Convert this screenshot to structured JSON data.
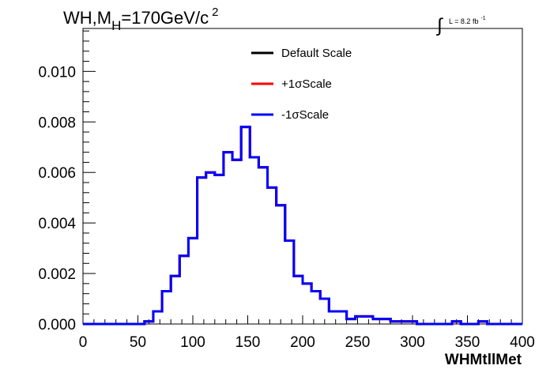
{
  "title": {
    "prefix": "WH,M",
    "subscript": "H",
    "main": "=170GeV/c",
    "superscript": "2"
  },
  "lumi": {
    "symbol": "∫",
    "text": "L = 8.2 fb",
    "superscript": "-1"
  },
  "colors": {
    "default": "#000000",
    "plus": "#ff0000",
    "minus": "#0000ff"
  },
  "chart_data": {
    "type": "line",
    "title": "WH,M_H=170GeV/c^2",
    "xlabel": "WHMtllMet",
    "ylabel": "",
    "xlim": [
      0,
      400
    ],
    "ylim": [
      0,
      0.0117
    ],
    "grid": false,
    "legend_position": "top-center",
    "x_ticks": [
      "0",
      "50",
      "100",
      "150",
      "200",
      "250",
      "300",
      "350",
      "400"
    ],
    "y_ticks": [
      "0.000",
      "0.002",
      "0.004",
      "0.006",
      "0.008",
      "0.010"
    ],
    "bin_edges": [
      0,
      8,
      16,
      24,
      32,
      40,
      48,
      56,
      64,
      72,
      80,
      88,
      96,
      104,
      112,
      120,
      128,
      136,
      144,
      152,
      160,
      168,
      176,
      184,
      192,
      200,
      208,
      216,
      224,
      232,
      240,
      248,
      256,
      264,
      272,
      280,
      288,
      296,
      304,
      312,
      320,
      328,
      336,
      344,
      352,
      360,
      368,
      376,
      384,
      392,
      400
    ],
    "series": [
      {
        "name": "Default Scale",
        "values": [
          0,
          0,
          0,
          0,
          0,
          0,
          0,
          0.0001,
          0.0005,
          0.0013,
          0.0019,
          0.0027,
          0.0034,
          0.0058,
          0.006,
          0.0059,
          0.0068,
          0.0065,
          0.0078,
          0.0066,
          0.0062,
          0.0054,
          0.0047,
          0.0033,
          0.0019,
          0.0016,
          0.0013,
          0.001,
          0.0005,
          0.0005,
          0.0002,
          0.0003,
          0.0003,
          0.0002,
          0.0002,
          0.0001,
          0.0001,
          0.0001,
          0,
          0,
          0,
          0,
          0.0001,
          0,
          0,
          0.0001,
          0,
          0,
          0,
          0
        ]
      },
      {
        "name": "+1σScale",
        "values": [
          0,
          0,
          0,
          0,
          0,
          0,
          0,
          0.0001,
          0.0005,
          0.0013,
          0.0019,
          0.0027,
          0.0034,
          0.0058,
          0.006,
          0.0059,
          0.0068,
          0.0065,
          0.0078,
          0.0066,
          0.0062,
          0.0054,
          0.0047,
          0.0033,
          0.0019,
          0.0016,
          0.0013,
          0.001,
          0.0005,
          0.0005,
          0.0002,
          0.0003,
          0.0003,
          0.0002,
          0.0002,
          0.0001,
          0.0001,
          0.0001,
          0,
          0,
          0,
          0,
          0.0001,
          0,
          0,
          0.0001,
          0,
          0,
          0,
          0
        ]
      },
      {
        "name": "-1σScale",
        "values": [
          0,
          0,
          0,
          0,
          0,
          0,
          0,
          0.0001,
          0.0005,
          0.0013,
          0.0019,
          0.0027,
          0.0034,
          0.0058,
          0.006,
          0.0059,
          0.0068,
          0.0065,
          0.0078,
          0.0066,
          0.0062,
          0.0054,
          0.0047,
          0.0033,
          0.0019,
          0.0016,
          0.0013,
          0.001,
          0.0005,
          0.0005,
          0.0002,
          0.0003,
          0.0003,
          0.0002,
          0.0002,
          0.0001,
          0.0001,
          0.0001,
          0,
          0,
          0,
          0,
          0.0001,
          0,
          0,
          0.0001,
          0,
          0,
          0,
          0
        ]
      }
    ]
  }
}
